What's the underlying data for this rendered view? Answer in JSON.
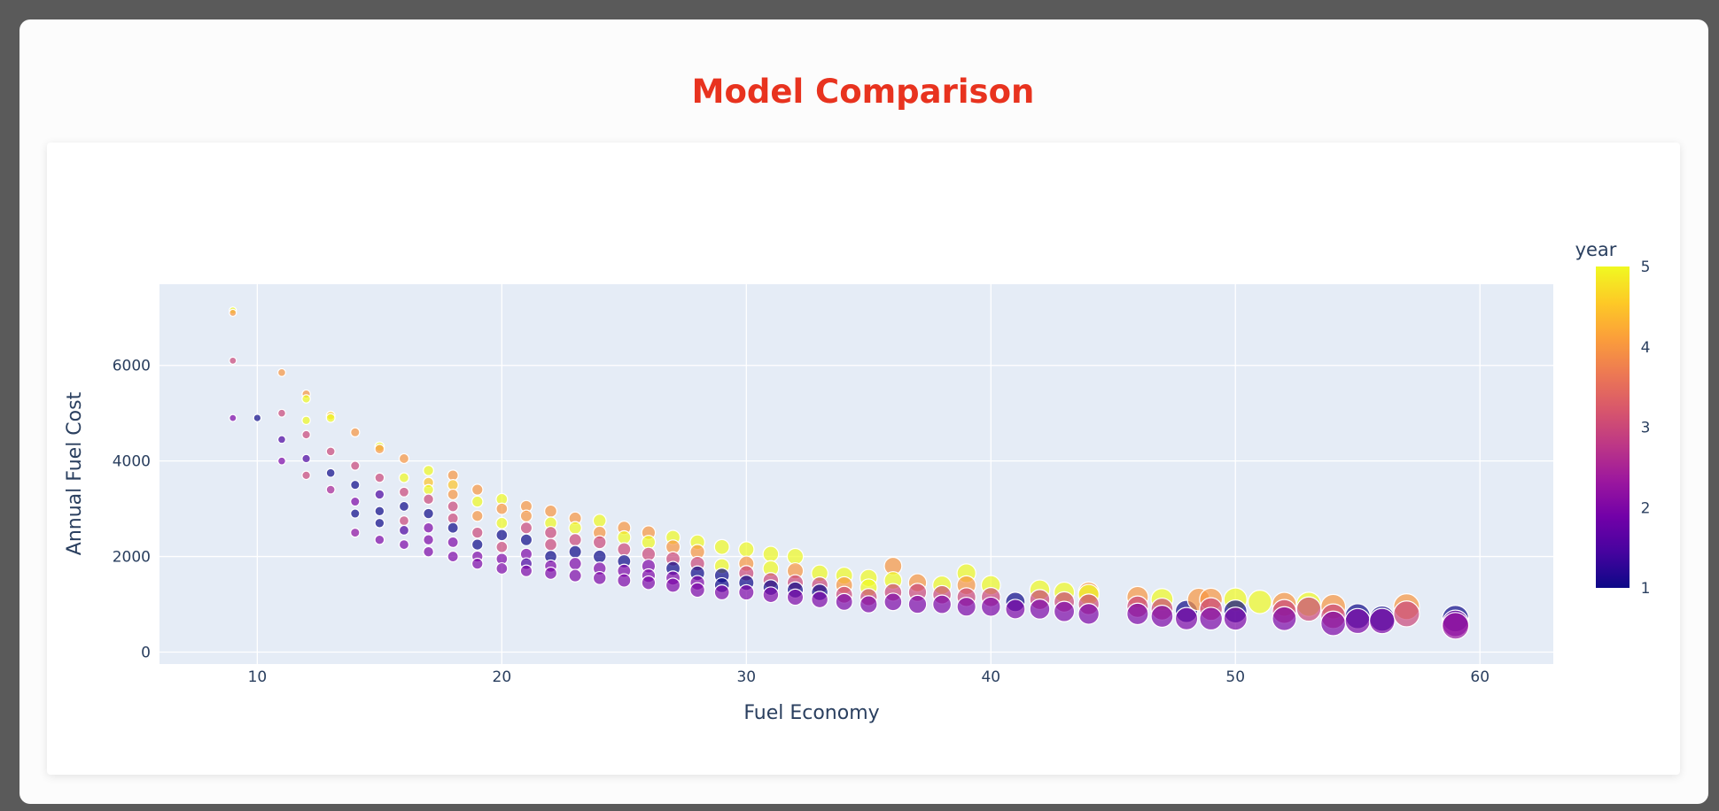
{
  "chart_data": {
    "type": "scatter",
    "title": "Model Comparison",
    "xlabel": "Fuel Economy",
    "ylabel": "Annual Fuel Cost",
    "xlim": [
      6,
      63
    ],
    "ylim": [
      -250,
      7700
    ],
    "xticks": [
      10,
      20,
      30,
      40,
      50,
      60
    ],
    "yticks": [
      0,
      2000,
      4000,
      6000
    ],
    "colorbar": {
      "title": "year",
      "min": 1,
      "max": 5,
      "ticks": [
        1,
        2,
        3,
        4,
        5
      ]
    },
    "colorscale": [
      "#0d0887",
      "#46039f",
      "#7201a8",
      "#9c179e",
      "#bd3786",
      "#d8576b",
      "#ed7953",
      "#fb9f3a",
      "#fdca26",
      "#f0f921"
    ],
    "marker_opacity": 0.7,
    "size_rule": "marker size grows with fuel economy",
    "points": [
      {
        "x": 9,
        "y": 7150,
        "c": 5
      },
      {
        "x": 9,
        "y": 7100,
        "c": 4
      },
      {
        "x": 9,
        "y": 6100,
        "c": 3
      },
      {
        "x": 9,
        "y": 4900,
        "c": 2
      },
      {
        "x": 10,
        "y": 4900,
        "c": 1
      },
      {
        "x": 11,
        "y": 5850,
        "c": 4
      },
      {
        "x": 11,
        "y": 5000,
        "c": 3
      },
      {
        "x": 11,
        "y": 4450,
        "c": 1.5
      },
      {
        "x": 11,
        "y": 4000,
        "c": 2
      },
      {
        "x": 12,
        "y": 5400,
        "c": 4
      },
      {
        "x": 12,
        "y": 5300,
        "c": 5
      },
      {
        "x": 12,
        "y": 4850,
        "c": 5
      },
      {
        "x": 12,
        "y": 4550,
        "c": 3
      },
      {
        "x": 12,
        "y": 4050,
        "c": 1.5
      },
      {
        "x": 12,
        "y": 3700,
        "c": 3
      },
      {
        "x": 13,
        "y": 4950,
        "c": 4.5
      },
      {
        "x": 13,
        "y": 4900,
        "c": 5
      },
      {
        "x": 13,
        "y": 4200,
        "c": 3
      },
      {
        "x": 13,
        "y": 3750,
        "c": 1
      },
      {
        "x": 13,
        "y": 3400,
        "c": 2.5
      },
      {
        "x": 14,
        "y": 4600,
        "c": 4
      },
      {
        "x": 14,
        "y": 3900,
        "c": 3
      },
      {
        "x": 14,
        "y": 3500,
        "c": 1
      },
      {
        "x": 14,
        "y": 3150,
        "c": 2
      },
      {
        "x": 14,
        "y": 2900,
        "c": 1
      },
      {
        "x": 14,
        "y": 2500,
        "c": 2.2
      },
      {
        "x": 15,
        "y": 4300,
        "c": 5
      },
      {
        "x": 15,
        "y": 4250,
        "c": 4
      },
      {
        "x": 15,
        "y": 3650,
        "c": 3
      },
      {
        "x": 15,
        "y": 3300,
        "c": 1.5
      },
      {
        "x": 15,
        "y": 2950,
        "c": 1
      },
      {
        "x": 15,
        "y": 2700,
        "c": 1
      },
      {
        "x": 15,
        "y": 2350,
        "c": 2
      },
      {
        "x": 16,
        "y": 4050,
        "c": 4
      },
      {
        "x": 16,
        "y": 3650,
        "c": 5
      },
      {
        "x": 16,
        "y": 3350,
        "c": 3
      },
      {
        "x": 16,
        "y": 3050,
        "c": 1
      },
      {
        "x": 16,
        "y": 2750,
        "c": 3
      },
      {
        "x": 16,
        "y": 2550,
        "c": 1.5
      },
      {
        "x": 16,
        "y": 2250,
        "c": 2
      },
      {
        "x": 17,
        "y": 3800,
        "c": 5
      },
      {
        "x": 17,
        "y": 3550,
        "c": 4.5
      },
      {
        "x": 17,
        "y": 3400,
        "c": 5
      },
      {
        "x": 17,
        "y": 3200,
        "c": 3
      },
      {
        "x": 17,
        "y": 2900,
        "c": 1
      },
      {
        "x": 17,
        "y": 2600,
        "c": 2
      },
      {
        "x": 17,
        "y": 2350,
        "c": 2
      },
      {
        "x": 17,
        "y": 2100,
        "c": 2
      },
      {
        "x": 18,
        "y": 3700,
        "c": 4
      },
      {
        "x": 18,
        "y": 3500,
        "c": 4.5
      },
      {
        "x": 18,
        "y": 3300,
        "c": 4
      },
      {
        "x": 18,
        "y": 3050,
        "c": 3
      },
      {
        "x": 18,
        "y": 2800,
        "c": 3
      },
      {
        "x": 18,
        "y": 2600,
        "c": 1
      },
      {
        "x": 18,
        "y": 2300,
        "c": 2
      },
      {
        "x": 18,
        "y": 2000,
        "c": 2
      },
      {
        "x": 19,
        "y": 3400,
        "c": 4
      },
      {
        "x": 19,
        "y": 3150,
        "c": 5
      },
      {
        "x": 19,
        "y": 2850,
        "c": 4
      },
      {
        "x": 19,
        "y": 2500,
        "c": 3
      },
      {
        "x": 19,
        "y": 2250,
        "c": 1
      },
      {
        "x": 19,
        "y": 2000,
        "c": 2
      },
      {
        "x": 19,
        "y": 1850,
        "c": 2
      },
      {
        "x": 20,
        "y": 3200,
        "c": 5
      },
      {
        "x": 20,
        "y": 3000,
        "c": 4
      },
      {
        "x": 20,
        "y": 2700,
        "c": 5
      },
      {
        "x": 20,
        "y": 2450,
        "c": 1
      },
      {
        "x": 20,
        "y": 2200,
        "c": 3
      },
      {
        "x": 20,
        "y": 1950,
        "c": 2
      },
      {
        "x": 20,
        "y": 1750,
        "c": 2
      },
      {
        "x": 21,
        "y": 3050,
        "c": 4
      },
      {
        "x": 21,
        "y": 2850,
        "c": 4
      },
      {
        "x": 21,
        "y": 2600,
        "c": 3
      },
      {
        "x": 21,
        "y": 2350,
        "c": 1
      },
      {
        "x": 21,
        "y": 2050,
        "c": 2
      },
      {
        "x": 21,
        "y": 1850,
        "c": 1.5
      },
      {
        "x": 21,
        "y": 1700,
        "c": 2
      },
      {
        "x": 22,
        "y": 2950,
        "c": 4
      },
      {
        "x": 22,
        "y": 2700,
        "c": 5
      },
      {
        "x": 22,
        "y": 2500,
        "c": 3
      },
      {
        "x": 22,
        "y": 2250,
        "c": 3
      },
      {
        "x": 22,
        "y": 2000,
        "c": 1
      },
      {
        "x": 22,
        "y": 1800,
        "c": 2
      },
      {
        "x": 22,
        "y": 1650,
        "c": 2
      },
      {
        "x": 23,
        "y": 2800,
        "c": 4
      },
      {
        "x": 23,
        "y": 2600,
        "c": 5
      },
      {
        "x": 23,
        "y": 2350,
        "c": 3
      },
      {
        "x": 23,
        "y": 2100,
        "c": 1
      },
      {
        "x": 23,
        "y": 1850,
        "c": 2
      },
      {
        "x": 23,
        "y": 1600,
        "c": 2
      },
      {
        "x": 24,
        "y": 2750,
        "c": 5
      },
      {
        "x": 24,
        "y": 2500,
        "c": 4
      },
      {
        "x": 24,
        "y": 2300,
        "c": 3
      },
      {
        "x": 24,
        "y": 2000,
        "c": 1
      },
      {
        "x": 24,
        "y": 1750,
        "c": 2
      },
      {
        "x": 24,
        "y": 1550,
        "c": 2
      },
      {
        "x": 25,
        "y": 2600,
        "c": 4
      },
      {
        "x": 25,
        "y": 2400,
        "c": 5
      },
      {
        "x": 25,
        "y": 2150,
        "c": 3
      },
      {
        "x": 25,
        "y": 1900,
        "c": 1
      },
      {
        "x": 25,
        "y": 1700,
        "c": 2
      },
      {
        "x": 25,
        "y": 1500,
        "c": 2
      },
      {
        "x": 26,
        "y": 2500,
        "c": 4
      },
      {
        "x": 26,
        "y": 2300,
        "c": 5
      },
      {
        "x": 26,
        "y": 2050,
        "c": 3
      },
      {
        "x": 26,
        "y": 1800,
        "c": 2
      },
      {
        "x": 26,
        "y": 1600,
        "c": 2
      },
      {
        "x": 26,
        "y": 1450,
        "c": 2
      },
      {
        "x": 27,
        "y": 2400,
        "c": 5
      },
      {
        "x": 27,
        "y": 2200,
        "c": 4
      },
      {
        "x": 27,
        "y": 1950,
        "c": 3
      },
      {
        "x": 27,
        "y": 1750,
        "c": 1
      },
      {
        "x": 27,
        "y": 1550,
        "c": 2
      },
      {
        "x": 27,
        "y": 1400,
        "c": 2
      },
      {
        "x": 28,
        "y": 2300,
        "c": 5
      },
      {
        "x": 28,
        "y": 2100,
        "c": 4
      },
      {
        "x": 28,
        "y": 1850,
        "c": 3
      },
      {
        "x": 28,
        "y": 1650,
        "c": 1
      },
      {
        "x": 28,
        "y": 1450,
        "c": 2
      },
      {
        "x": 28,
        "y": 1300,
        "c": 2
      },
      {
        "x": 29,
        "y": 2200,
        "c": 5
      },
      {
        "x": 29,
        "y": 1800,
        "c": 5
      },
      {
        "x": 29,
        "y": 1600,
        "c": 1
      },
      {
        "x": 29,
        "y": 1400,
        "c": 1
      },
      {
        "x": 29,
        "y": 1250,
        "c": 2
      },
      {
        "x": 30,
        "y": 2150,
        "c": 5
      },
      {
        "x": 30,
        "y": 1850,
        "c": 4
      },
      {
        "x": 30,
        "y": 1650,
        "c": 3
      },
      {
        "x": 30,
        "y": 1450,
        "c": 1
      },
      {
        "x": 30,
        "y": 1250,
        "c": 2
      },
      {
        "x": 31,
        "y": 2050,
        "c": 5
      },
      {
        "x": 31,
        "y": 1750,
        "c": 5
      },
      {
        "x": 31,
        "y": 1500,
        "c": 3
      },
      {
        "x": 31,
        "y": 1350,
        "c": 1
      },
      {
        "x": 31,
        "y": 1200,
        "c": 2
      },
      {
        "x": 32,
        "y": 2000,
        "c": 5
      },
      {
        "x": 32,
        "y": 1700,
        "c": 4
      },
      {
        "x": 32,
        "y": 1450,
        "c": 3
      },
      {
        "x": 32,
        "y": 1300,
        "c": 1
      },
      {
        "x": 32,
        "y": 1150,
        "c": 2
      },
      {
        "x": 33,
        "y": 1650,
        "c": 5
      },
      {
        "x": 33,
        "y": 1400,
        "c": 3
      },
      {
        "x": 33,
        "y": 1250,
        "c": 1
      },
      {
        "x": 33,
        "y": 1100,
        "c": 2
      },
      {
        "x": 34,
        "y": 1600,
        "c": 5
      },
      {
        "x": 34,
        "y": 1400,
        "c": 4
      },
      {
        "x": 34,
        "y": 1200,
        "c": 3
      },
      {
        "x": 34,
        "y": 1050,
        "c": 2
      },
      {
        "x": 35,
        "y": 1550,
        "c": 5
      },
      {
        "x": 35,
        "y": 1350,
        "c": 5
      },
      {
        "x": 35,
        "y": 1150,
        "c": 3
      },
      {
        "x": 35,
        "y": 1000,
        "c": 2
      },
      {
        "x": 36,
        "y": 1800,
        "c": 4
      },
      {
        "x": 36,
        "y": 1500,
        "c": 5
      },
      {
        "x": 36,
        "y": 1250,
        "c": 3
      },
      {
        "x": 36,
        "y": 1050,
        "c": 2
      },
      {
        "x": 37,
        "y": 1450,
        "c": 4
      },
      {
        "x": 37,
        "y": 1250,
        "c": 3
      },
      {
        "x": 37,
        "y": 1000,
        "c": 2
      },
      {
        "x": 38,
        "y": 1400,
        "c": 5
      },
      {
        "x": 38,
        "y": 1200,
        "c": 3
      },
      {
        "x": 38,
        "y": 1000,
        "c": 2
      },
      {
        "x": 39,
        "y": 1650,
        "c": 5
      },
      {
        "x": 39,
        "y": 1400,
        "c": 4
      },
      {
        "x": 39,
        "y": 1150,
        "c": 3
      },
      {
        "x": 39,
        "y": 950,
        "c": 2
      },
      {
        "x": 40,
        "y": 1400,
        "c": 5
      },
      {
        "x": 40,
        "y": 1150,
        "c": 3
      },
      {
        "x": 40,
        "y": 950,
        "c": 2
      },
      {
        "x": 41,
        "y": 1050,
        "c": 1
      },
      {
        "x": 41,
        "y": 900,
        "c": 2
      },
      {
        "x": 42,
        "y": 1300,
        "c": 5
      },
      {
        "x": 42,
        "y": 1100,
        "c": 3
      },
      {
        "x": 42,
        "y": 900,
        "c": 2
      },
      {
        "x": 43,
        "y": 1250,
        "c": 5
      },
      {
        "x": 43,
        "y": 1050,
        "c": 3
      },
      {
        "x": 43,
        "y": 850,
        "c": 2
      },
      {
        "x": 44,
        "y": 1250,
        "c": 4
      },
      {
        "x": 44,
        "y": 1200,
        "c": 5
      },
      {
        "x": 44,
        "y": 1000,
        "c": 3
      },
      {
        "x": 44,
        "y": 800,
        "c": 2
      },
      {
        "x": 46,
        "y": 1150,
        "c": 4
      },
      {
        "x": 46,
        "y": 950,
        "c": 3
      },
      {
        "x": 46,
        "y": 800,
        "c": 2
      },
      {
        "x": 47,
        "y": 1100,
        "c": 5
      },
      {
        "x": 47,
        "y": 900,
        "c": 3
      },
      {
        "x": 47,
        "y": 750,
        "c": 2
      },
      {
        "x": 48,
        "y": 850,
        "c": 1
      },
      {
        "x": 48,
        "y": 700,
        "c": 2
      },
      {
        "x": 48.5,
        "y": 1100,
        "c": 4
      },
      {
        "x": 49,
        "y": 1100,
        "c": 4
      },
      {
        "x": 49,
        "y": 900,
        "c": 3
      },
      {
        "x": 49,
        "y": 700,
        "c": 2
      },
      {
        "x": 50,
        "y": 1100,
        "c": 5
      },
      {
        "x": 50,
        "y": 850,
        "c": 1
      },
      {
        "x": 50,
        "y": 700,
        "c": 2
      },
      {
        "x": 51,
        "y": 1050,
        "c": 5
      },
      {
        "x": 52,
        "y": 1000,
        "c": 4
      },
      {
        "x": 52,
        "y": 850,
        "c": 3
      },
      {
        "x": 52,
        "y": 700,
        "c": 2
      },
      {
        "x": 53,
        "y": 1000,
        "c": 5
      },
      {
        "x": 53,
        "y": 900,
        "c": 3
      },
      {
        "x": 54,
        "y": 950,
        "c": 4
      },
      {
        "x": 54,
        "y": 750,
        "c": 3
      },
      {
        "x": 54,
        "y": 600,
        "c": 2
      },
      {
        "x": 55,
        "y": 750,
        "c": 1
      },
      {
        "x": 55,
        "y": 650,
        "c": 2
      },
      {
        "x": 56,
        "y": 700,
        "c": 1
      },
      {
        "x": 56,
        "y": 650,
        "c": 2
      },
      {
        "x": 57,
        "y": 950,
        "c": 4
      },
      {
        "x": 57,
        "y": 800,
        "c": 3
      },
      {
        "x": 59,
        "y": 700,
        "c": 1
      },
      {
        "x": 59,
        "y": 600,
        "c": 2
      },
      {
        "x": 59,
        "y": 550,
        "c": 2.3
      }
    ]
  }
}
